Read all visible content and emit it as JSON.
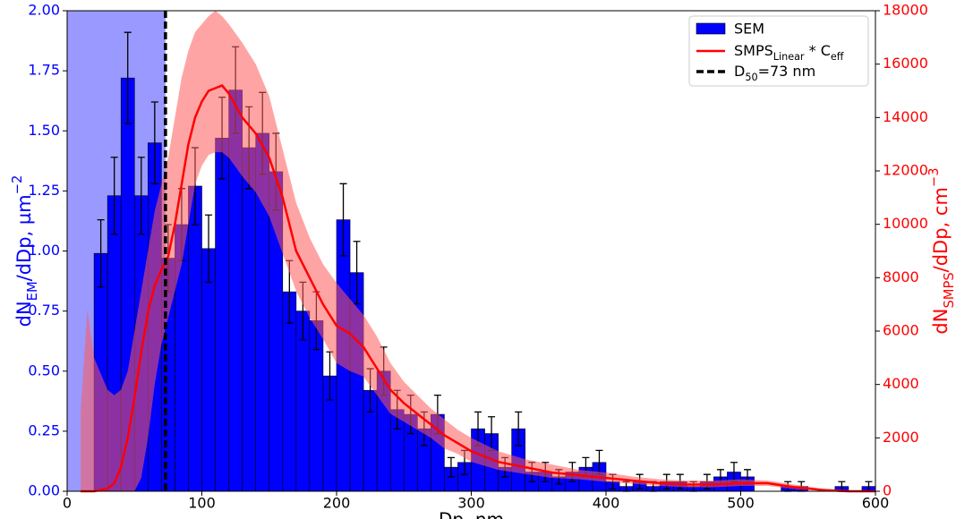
{
  "chart_data": {
    "type": "histogram",
    "bins": [
      20,
      30,
      40,
      50,
      60,
      70,
      80,
      90,
      100,
      110,
      120,
      130,
      140,
      150,
      160,
      170,
      180,
      190,
      200,
      210,
      220,
      230,
      240,
      250,
      260,
      270,
      280,
      290,
      300,
      310,
      320,
      330,
      340,
      350,
      360,
      370,
      380,
      390,
      400,
      410,
      420,
      430,
      440,
      450,
      460,
      470,
      480,
      490,
      500,
      510,
      520,
      530,
      540,
      550,
      560,
      570,
      580,
      590,
      600
    ],
    "values": [
      0.99,
      1.23,
      1.72,
      1.23,
      1.45,
      0.97,
      1.11,
      1.27,
      1.01,
      1.47,
      1.67,
      1.43,
      1.49,
      1.33,
      0.83,
      0.75,
      0.71,
      0.48,
      1.13,
      0.91,
      0.42,
      0.5,
      0.34,
      0.32,
      0.26,
      0.32,
      0.1,
      0.12,
      0.26,
      0.24,
      0.1,
      0.26,
      0.08,
      0.08,
      0.06,
      0.08,
      0.1,
      0.12,
      0.04,
      0.02,
      0.04,
      0.02,
      0.04,
      0.04,
      0.02,
      0.04,
      0.06,
      0.08,
      0.06,
      0,
      0,
      0.02,
      0.02,
      0,
      0,
      0.02,
      0,
      0.02
    ],
    "errors": [
      0.14,
      0.16,
      0.19,
      0.16,
      0.17,
      0.14,
      0.15,
      0.16,
      0.14,
      0.17,
      0.18,
      0.17,
      0.17,
      0.16,
      0.13,
      0.12,
      0.12,
      0.1,
      0.15,
      0.13,
      0.09,
      0.1,
      0.08,
      0.08,
      0.07,
      0.08,
      0.04,
      0.05,
      0.07,
      0.07,
      0.04,
      0.07,
      0.04,
      0.04,
      0.03,
      0.04,
      0.04,
      0.05,
      0.03,
      0.02,
      0.03,
      0.02,
      0.03,
      0.03,
      0.02,
      0.03,
      0.03,
      0.04,
      0.03,
      0,
      0,
      0.02,
      0.02,
      0,
      0,
      0.02,
      0,
      0.02
    ],
    "color": "#0000ff",
    "smps": {
      "color": "#ff0000",
      "band_color": "#ff5a5a",
      "x": [
        10,
        15,
        20,
        30,
        35,
        40,
        45,
        50,
        55,
        60,
        65,
        70,
        75,
        80,
        85,
        90,
        95,
        100,
        105,
        110,
        115,
        120,
        130,
        140,
        150,
        160,
        170,
        180,
        190,
        200,
        210,
        220,
        230,
        240,
        250,
        260,
        270,
        280,
        290,
        300,
        320,
        340,
        360,
        380,
        400,
        420,
        440,
        460,
        480,
        500,
        520,
        540,
        560,
        580,
        600
      ],
      "values": [
        0,
        0,
        0,
        100,
        300,
        900,
        2000,
        3500,
        5200,
        6700,
        7700,
        8300,
        8800,
        10000,
        11500,
        13000,
        14000,
        14600,
        15000,
        15100,
        15200,
        14900,
        14000,
        13400,
        12500,
        11000,
        9000,
        8000,
        7000,
        6200,
        5900,
        5400,
        4600,
        3800,
        3300,
        2900,
        2500,
        2100,
        1800,
        1500,
        1100,
        900,
        700,
        600,
        500,
        400,
        300,
        250,
        250,
        300,
        300,
        150,
        50,
        0,
        0
      ],
      "upper": [
        3000,
        6800,
        5000,
        3800,
        3600,
        3800,
        4500,
        6000,
        7500,
        9000,
        10500,
        11500,
        12500,
        14000,
        15500,
        16500,
        17200,
        17500,
        17800,
        18000,
        17800,
        17500,
        16800,
        16000,
        14800,
        12800,
        10800,
        9500,
        8500,
        7800,
        7200,
        6600,
        5800,
        4800,
        4100,
        3600,
        3100,
        2700,
        2300,
        2000,
        1500,
        1200,
        1000,
        800,
        700,
        550,
        450,
        400,
        400,
        450,
        400,
        250,
        100,
        0,
        0
      ],
      "lower": [
        0,
        0,
        0,
        0,
        0,
        0,
        0,
        0,
        500,
        2000,
        4000,
        5500,
        6500,
        7500,
        8500,
        10000,
        11500,
        12200,
        12600,
        12700,
        12700,
        12500,
        11800,
        11200,
        10300,
        8900,
        7500,
        6500,
        5700,
        4800,
        4500,
        4300,
        3600,
        2900,
        2600,
        2300,
        2000,
        1600,
        1400,
        1100,
        800,
        650,
        500,
        450,
        350,
        280,
        200,
        150,
        150,
        200,
        200,
        80,
        20,
        0,
        0
      ]
    },
    "d50": {
      "value": 73,
      "shade_color": "#9999ff"
    },
    "legend": {
      "sem": "SEM",
      "smps": [
        "SMPS",
        "Linear",
        " * C",
        "eff"
      ],
      "d50": [
        "D",
        "50",
        "=73 nm"
      ]
    },
    "xlabel": "Dp, nm",
    "ylabel": [
      "dN",
      "EM",
      "/dDp, µm",
      "−2"
    ],
    "y2label": [
      "dN",
      "SMPS",
      "/dDp, cm",
      "−3"
    ],
    "xlim": [
      0,
      600
    ],
    "xticks": [
      0,
      100,
      200,
      300,
      400,
      500,
      600
    ],
    "ylim": [
      0,
      2
    ],
    "yticks": [
      {
        "value": 0,
        "label": "0.00"
      },
      {
        "value": 0.25,
        "label": "0.25"
      },
      {
        "value": 0.5,
        "label": "0.50"
      },
      {
        "value": 0.75,
        "label": "0.75"
      },
      {
        "value": 1,
        "label": "1.00"
      },
      {
        "value": 1.25,
        "label": "1.25"
      },
      {
        "value": 1.5,
        "label": "1.50"
      },
      {
        "value": 1.75,
        "label": "1.75"
      },
      {
        "value": 2,
        "label": "2.00"
      }
    ],
    "y2lim": [
      0,
      18000
    ],
    "y2ticks": [
      0,
      2000,
      4000,
      6000,
      8000,
      10000,
      12000,
      14000,
      16000,
      18000
    ]
  }
}
